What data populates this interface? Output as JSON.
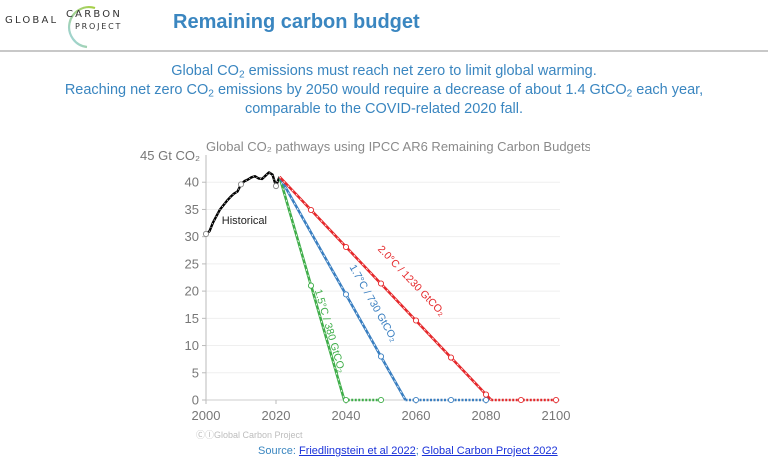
{
  "header": {
    "logo": {
      "line1": "GLOBAL",
      "line2": "CARBON",
      "line3": "PROJECT"
    },
    "title": "Remaining carbon budget"
  },
  "subtitle": {
    "line1_a": "Global CO",
    "line1_sub": "2",
    "line1_b": " emissions must reach net zero to limit global warming.",
    "line2_a": "Reaching net zero CO",
    "line2_sub": "2",
    "line2_b": " emissions by 2050 would require a decrease of about 1.4 GtCO",
    "line2_sub2": "2",
    "line2_c": " each year,",
    "line3": "comparable to the COVID-related 2020 fall."
  },
  "credit": "ⒸⒾGlobal Carbon Project",
  "source": {
    "prefix": "Source: ",
    "link1": "Friedlingstein et al 2022",
    "sep": "; ",
    "link2": "Global Carbon Project 2022"
  },
  "chart_data": {
    "type": "line",
    "title": "Global CO₂ pathways using IPCC AR6 Remaining Carbon Budgets",
    "ylabel": "45 Gt CO₂",
    "xlabel": "",
    "xlim": [
      2000,
      2100
    ],
    "ylim": [
      0,
      45
    ],
    "xticks": [
      2000,
      2020,
      2040,
      2060,
      2080,
      2100
    ],
    "yticks": [
      0,
      5,
      10,
      15,
      20,
      25,
      30,
      35,
      40
    ],
    "grid": "horizontal",
    "series": [
      {
        "name": "Historical",
        "label": "Historical",
        "color": "#000000",
        "x": [
          2000,
          2001,
          2002,
          2003,
          2004,
          2005,
          2006,
          2007,
          2008,
          2009,
          2010,
          2011,
          2012,
          2013,
          2014,
          2015,
          2016,
          2017,
          2018,
          2019,
          2020,
          2021
        ],
        "y": [
          30.5,
          31.0,
          32.6,
          33.8,
          35.0,
          35.8,
          36.6,
          37.3,
          37.9,
          38.3,
          39.6,
          40.2,
          40.5,
          40.9,
          41.1,
          40.7,
          40.6,
          41.2,
          41.8,
          41.4,
          39.3,
          41.0
        ],
        "markers": [
          [
            2000,
            30.5
          ],
          [
            2010,
            39.6
          ],
          [
            2020,
            39.3
          ]
        ]
      },
      {
        "name": "1.5°C / 380 GtCO₂",
        "label": "1.5°C / 380 GtCO₂",
        "color": "#3fae49",
        "x": [
          2021,
          2039.5,
          2050
        ],
        "y": [
          41.0,
          0,
          0
        ],
        "markers": [
          [
            2030,
            21.0
          ],
          [
            2040,
            0
          ],
          [
            2050,
            0
          ]
        ]
      },
      {
        "name": "1.7°C / 730 GtCO₂",
        "label": "1.7°C / 730 GtCO₂",
        "color": "#3a7fc1",
        "x": [
          2021,
          2057,
          2080
        ],
        "y": [
          41.0,
          0,
          0
        ],
        "markers": [
          [
            2040,
            19.4
          ],
          [
            2050,
            8.0
          ],
          [
            2060,
            0
          ],
          [
            2070,
            0
          ],
          [
            2080,
            0
          ]
        ]
      },
      {
        "name": "2.0°C / 1230 GtCO₂",
        "label": "2.0°C / 1230 GtCO₂",
        "color": "#e5282b",
        "x": [
          2021,
          2081.5,
          2100
        ],
        "y": [
          41.0,
          0,
          0
        ],
        "markers": [
          [
            2030,
            34.9
          ],
          [
            2040,
            28.1
          ],
          [
            2050,
            21.4
          ],
          [
            2060,
            14.6
          ],
          [
            2070,
            7.8
          ],
          [
            2080,
            1.0
          ],
          [
            2090,
            0
          ],
          [
            2100,
            0
          ]
        ]
      }
    ]
  }
}
